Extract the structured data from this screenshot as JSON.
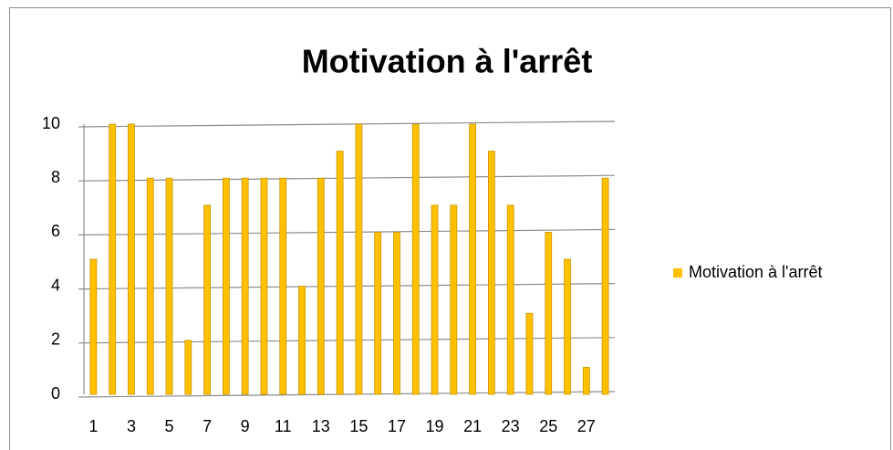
{
  "chart_data": {
    "type": "bar",
    "title": "Motivation à l'arrêt",
    "categories": [
      1,
      null,
      3,
      null,
      5,
      null,
      7,
      null,
      9,
      null,
      11,
      null,
      13,
      null,
      15,
      null,
      17,
      null,
      19,
      null,
      21,
      null,
      23,
      null,
      25,
      null,
      27,
      null
    ],
    "series": [
      {
        "name": "Motivation à l'arrêt",
        "color": "#ffc000",
        "values": [
          5,
          10,
          10,
          8,
          8,
          2,
          7,
          8,
          8,
          8,
          8,
          4,
          8,
          9,
          10,
          6,
          6,
          10,
          7,
          7,
          10,
          9,
          7,
          3,
          6,
          5,
          1,
          8
        ]
      }
    ],
    "ylim": [
      0,
      10
    ],
    "yticks": [
      0,
      2,
      4,
      6,
      8,
      10
    ],
    "grid": true,
    "legend": "right"
  }
}
